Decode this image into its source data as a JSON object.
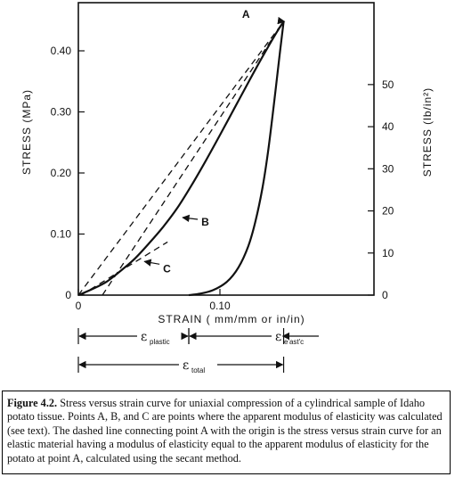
{
  "chart_data": {
    "type": "line",
    "xlabel": "STRAIN ( mm/mm or in/in)",
    "ylabel_left": "STRESS (MPa)",
    "ylabel_right": "STRESS (lb/in²)",
    "xlim": [
      0,
      0.185
    ],
    "ylim": [
      0,
      0.48
    ],
    "x_ticks": [
      {
        "value": 0,
        "label": "0"
      },
      {
        "value": 0.1,
        "label": "0.10"
      }
    ],
    "y_ticks_left": [
      {
        "value": 0,
        "label": "0"
      },
      {
        "value": 0.1,
        "label": "0.10"
      },
      {
        "value": 0.2,
        "label": "0.20"
      },
      {
        "value": 0.3,
        "label": "0.30"
      },
      {
        "value": 0.4,
        "label": "0.40"
      }
    ],
    "y_ticks_right": [
      {
        "value": 0,
        "label": "0"
      },
      {
        "value": 10,
        "label": "10"
      },
      {
        "value": 20,
        "label": "20"
      },
      {
        "value": 30,
        "label": "30"
      },
      {
        "value": 40,
        "label": "40"
      },
      {
        "value": 50,
        "label": "50"
      }
    ],
    "psi_per_mpa": 145.0377,
    "series": [
      {
        "role": "loading",
        "style": "solid",
        "points": [
          [
            0,
            0
          ],
          [
            0.01,
            0.01
          ],
          [
            0.02,
            0.022
          ],
          [
            0.03,
            0.04
          ],
          [
            0.04,
            0.06
          ],
          [
            0.05,
            0.085
          ],
          [
            0.06,
            0.112
          ],
          [
            0.07,
            0.143
          ],
          [
            0.08,
            0.18
          ],
          [
            0.09,
            0.22
          ],
          [
            0.1,
            0.262
          ],
          [
            0.11,
            0.305
          ],
          [
            0.12,
            0.348
          ],
          [
            0.13,
            0.39
          ],
          [
            0.14,
            0.43
          ],
          [
            0.145,
            0.448
          ]
        ]
      },
      {
        "role": "unloading",
        "style": "solid",
        "points": [
          [
            0.145,
            0.448
          ],
          [
            0.142,
            0.39
          ],
          [
            0.138,
            0.31
          ],
          [
            0.134,
            0.235
          ],
          [
            0.13,
            0.175
          ],
          [
            0.125,
            0.12
          ],
          [
            0.12,
            0.08
          ],
          [
            0.113,
            0.045
          ],
          [
            0.105,
            0.022
          ],
          [
            0.095,
            0.008
          ],
          [
            0.085,
            0.002
          ],
          [
            0.078,
            0
          ]
        ]
      },
      {
        "role": "secant-A",
        "style": "dashed",
        "points": [
          [
            0,
            0
          ],
          [
            0.145,
            0.448
          ]
        ]
      },
      {
        "role": "tangent-B",
        "style": "dashed",
        "points": [
          [
            0.017,
            0
          ],
          [
            0.145,
            0.448
          ]
        ]
      },
      {
        "role": "tangent-C",
        "style": "dashed",
        "points": [
          [
            0.002,
            0
          ],
          [
            0.063,
            0.087
          ]
        ]
      }
    ],
    "points": [
      {
        "label": "A",
        "x": 0.145,
        "y": 0.448
      },
      {
        "label": "B",
        "x": 0.073,
        "y": 0.127
      },
      {
        "label": "C",
        "x": 0.046,
        "y": 0.055
      }
    ],
    "strain_annotations": {
      "plastic": {
        "symbol": "ε",
        "sub": "plastic",
        "from": 0,
        "to": 0.078
      },
      "elastic": {
        "symbol": "ε",
        "sub": "e'ast'c",
        "from": 0.078,
        "to": 0.145
      },
      "total": {
        "symbol": "ε",
        "sub": "total",
        "from": 0,
        "to": 0.145
      }
    }
  },
  "caption": {
    "label": "Figure 4.2.",
    "text": "Stress versus strain curve for uniaxial compression of a cylindrical sample of Idaho potato tissue. Points A, B, and C are points where the apparent modulus of elasticity was calculated (see text). The dashed line connecting point A with the origin is the stress versus strain curve for an elastic material having a modulus of elasticity equal to the apparent modulus of elasticity for the potato at point A, calculated using the secant method."
  }
}
